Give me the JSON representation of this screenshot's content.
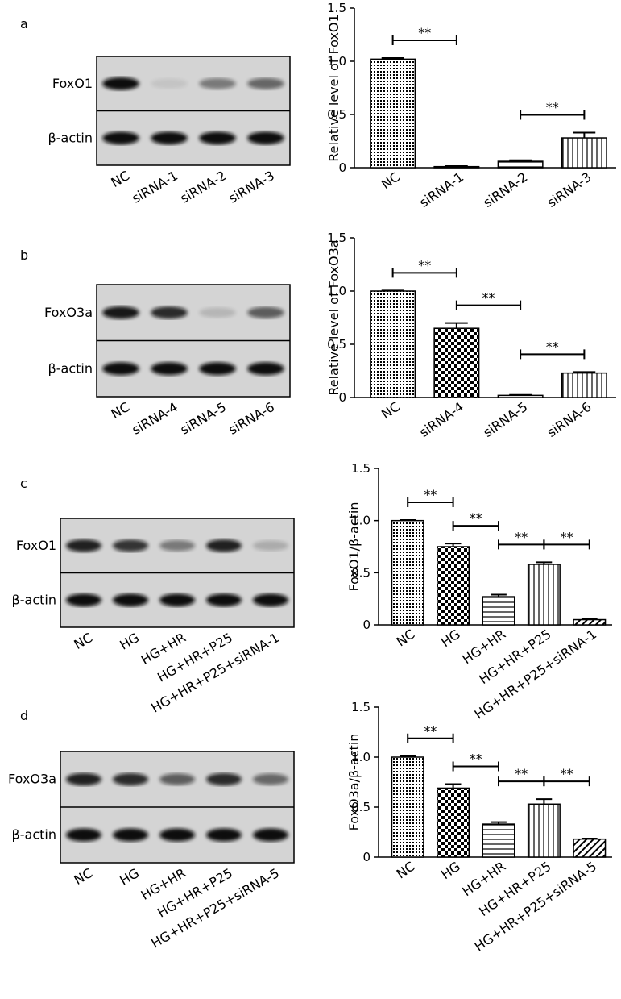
{
  "chart_data": [
    {
      "type": "bar",
      "panel": "a",
      "ylabel": "Relative level of FoxO1",
      "categories": [
        "NC",
        "siRNA-1",
        "siRNA-2",
        "siRNA-3"
      ],
      "values": [
        1.02,
        0.01,
        0.06,
        0.28
      ],
      "errors": [
        0.01,
        0.005,
        0.01,
        0.05
      ],
      "ylim": [
        0,
        1.5
      ],
      "yticks": [
        0,
        0.5,
        {
          "value": 1,
          "label": "1.0"
        },
        1.5
      ],
      "comparisons": [
        {
          "pair": [
            0,
            1
          ],
          "label": "**"
        },
        {
          "pair": [
            2,
            3
          ],
          "label": "**"
        }
      ],
      "blot": {
        "rows": [
          "FoxO1",
          "β-actin"
        ]
      }
    },
    {
      "type": "bar",
      "panel": "b",
      "ylabel": "Relative level of FoxO3a",
      "categories": [
        "NC",
        "siRNA-4",
        "siRNA-5",
        "siRNA-6"
      ],
      "values": [
        1.0,
        0.65,
        0.02,
        0.23
      ],
      "errors": [
        0.005,
        0.05,
        0.005,
        0.01
      ],
      "ylim": [
        0,
        1.5
      ],
      "yticks": [
        0,
        0.5,
        {
          "value": 1,
          "label": "1.0"
        },
        1.5
      ],
      "comparisons": [
        {
          "pair": [
            0,
            1
          ],
          "label": "**"
        },
        {
          "pair": [
            1,
            2
          ],
          "label": "**"
        },
        {
          "pair": [
            2,
            3
          ],
          "label": "**"
        }
      ],
      "blot": {
        "rows": [
          "FoxO3a",
          "β-actin"
        ]
      }
    },
    {
      "type": "bar",
      "panel": "c",
      "ylabel": "FoxO1/β-actin",
      "categories": [
        "NC",
        "HG",
        "HG+HR",
        "HG+HR+P25",
        "HG+HR+P25+siRNA-1"
      ],
      "values": [
        1.0,
        0.75,
        0.27,
        0.58,
        0.05
      ],
      "errors": [
        0.005,
        0.03,
        0.02,
        0.02,
        0.005
      ],
      "ylim": [
        0,
        1.5
      ],
      "yticks": [
        0,
        0.5,
        {
          "value": 1,
          "label": "1.0"
        },
        1.5
      ],
      "comparisons": [
        {
          "pair": [
            0,
            1
          ],
          "label": "**"
        },
        {
          "pair": [
            1,
            2
          ],
          "label": "**"
        },
        {
          "pair": [
            2,
            3
          ],
          "label": "**"
        },
        {
          "pair": [
            3,
            4
          ],
          "label": "**"
        }
      ],
      "blot": {
        "rows": [
          "FoxO1",
          "β-actin"
        ]
      }
    },
    {
      "type": "bar",
      "panel": "d",
      "ylabel": "FoxO3a/β-actin",
      "categories": [
        "NC",
        "HG",
        "HG+HR",
        "HG+HR+P25",
        "HG+HR+P25+siRNA-5"
      ],
      "values": [
        1.0,
        0.69,
        0.33,
        0.53,
        0.18
      ],
      "errors": [
        0.01,
        0.04,
        0.02,
        0.05,
        0.005
      ],
      "ylim": [
        0,
        1.5
      ],
      "yticks": [
        0,
        0.5,
        {
          "value": 1,
          "label": "1.0"
        },
        1.5
      ],
      "comparisons": [
        {
          "pair": [
            0,
            1
          ],
          "label": "**"
        },
        {
          "pair": [
            1,
            2
          ],
          "label": "**"
        },
        {
          "pair": [
            2,
            3
          ],
          "label": "**"
        },
        {
          "pair": [
            3,
            4
          ],
          "label": "**"
        }
      ],
      "blot": {
        "rows": [
          "FoxO3a",
          "β-actin"
        ]
      }
    }
  ]
}
